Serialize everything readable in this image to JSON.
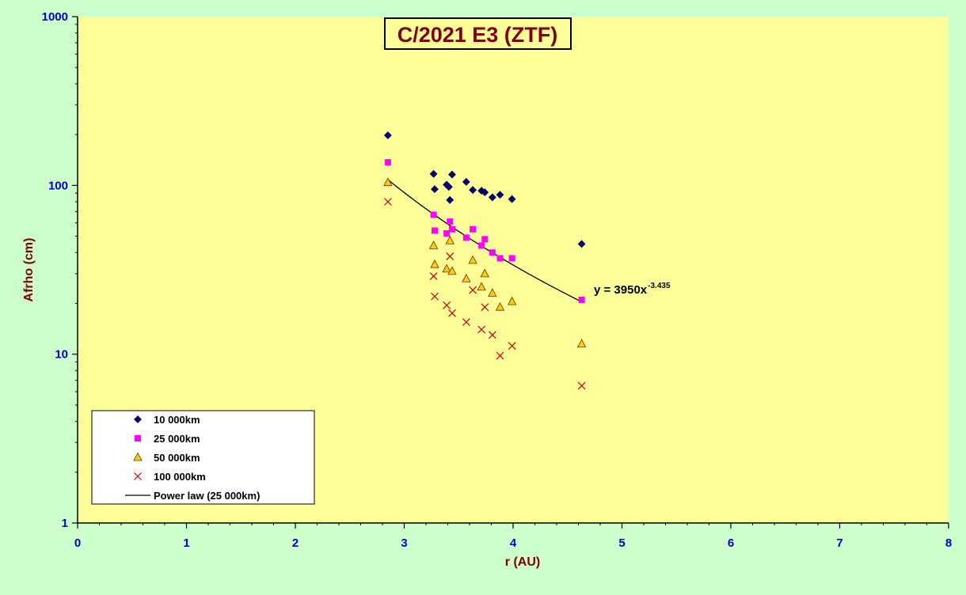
{
  "chart_data": {
    "type": "scatter",
    "title": "C/2021 E3 (ZTF)",
    "xlabel": "r (AU)",
    "ylabel": "Afrho (cm)",
    "xlim": [
      0,
      8
    ],
    "ylim": [
      1,
      1000
    ],
    "yscale": "log",
    "x_ticks": [
      "0",
      "1",
      "2",
      "3",
      "4",
      "5",
      "6",
      "7",
      "8"
    ],
    "y_ticks": [
      "1",
      "10",
      "100",
      "1000"
    ],
    "background_color": "#ffff99",
    "outer_background_color": "#ccffcc",
    "grid": false,
    "legend_position": "bottom-left",
    "series": [
      {
        "name": "10 000km",
        "marker": "diamond",
        "color": "#000080",
        "points": [
          [
            2.85,
            198
          ],
          [
            3.27,
            117
          ],
          [
            3.28,
            95
          ],
          [
            3.39,
            101
          ],
          [
            3.41,
            98
          ],
          [
            3.42,
            82
          ],
          [
            3.44,
            116
          ],
          [
            3.57,
            105
          ],
          [
            3.63,
            94
          ],
          [
            3.71,
            93
          ],
          [
            3.74,
            91
          ],
          [
            3.81,
            85
          ],
          [
            3.88,
            88
          ],
          [
            3.99,
            83
          ],
          [
            4.63,
            45
          ]
        ]
      },
      {
        "name": "25 000km",
        "marker": "square",
        "color": "#ff00ff",
        "points": [
          [
            2.85,
            137
          ],
          [
            3.27,
            67
          ],
          [
            3.28,
            54
          ],
          [
            3.39,
            52
          ],
          [
            3.42,
            61
          ],
          [
            3.44,
            55
          ],
          [
            3.57,
            49
          ],
          [
            3.63,
            55
          ],
          [
            3.71,
            44
          ],
          [
            3.74,
            48
          ],
          [
            3.81,
            40
          ],
          [
            3.88,
            37
          ],
          [
            3.99,
            37
          ],
          [
            4.63,
            21
          ]
        ]
      },
      {
        "name": "50 000km",
        "marker": "triangle",
        "color": "#ffcc00",
        "points": [
          [
            2.85,
            104
          ],
          [
            3.27,
            44
          ],
          [
            3.28,
            34
          ],
          [
            3.39,
            32
          ],
          [
            3.42,
            47
          ],
          [
            3.44,
            31
          ],
          [
            3.57,
            28
          ],
          [
            3.63,
            36
          ],
          [
            3.71,
            25
          ],
          [
            3.74,
            30
          ],
          [
            3.81,
            23
          ],
          [
            3.88,
            19
          ],
          [
            3.99,
            20.5
          ],
          [
            4.63,
            11.5
          ]
        ]
      },
      {
        "name": "100 000km",
        "marker": "x",
        "color": "#cc0000",
        "points": [
          [
            2.85,
            80
          ],
          [
            3.27,
            29
          ],
          [
            3.28,
            22
          ],
          [
            3.39,
            19.5
          ],
          [
            3.42,
            38
          ],
          [
            3.44,
            17.5
          ],
          [
            3.57,
            15.5
          ],
          [
            3.63,
            24
          ],
          [
            3.71,
            14
          ],
          [
            3.74,
            19
          ],
          [
            3.81,
            13
          ],
          [
            3.88,
            9.8
          ],
          [
            3.99,
            11.2
          ],
          [
            4.63,
            6.5
          ]
        ]
      }
    ],
    "fit": {
      "name": "Power law (25 000km)",
      "coefficient": 3950,
      "exponent": -3.435,
      "x_range": [
        2.85,
        4.63
      ],
      "color": "#000000",
      "label_text": "y = 3950x",
      "label_exponent": "-3.435"
    }
  }
}
